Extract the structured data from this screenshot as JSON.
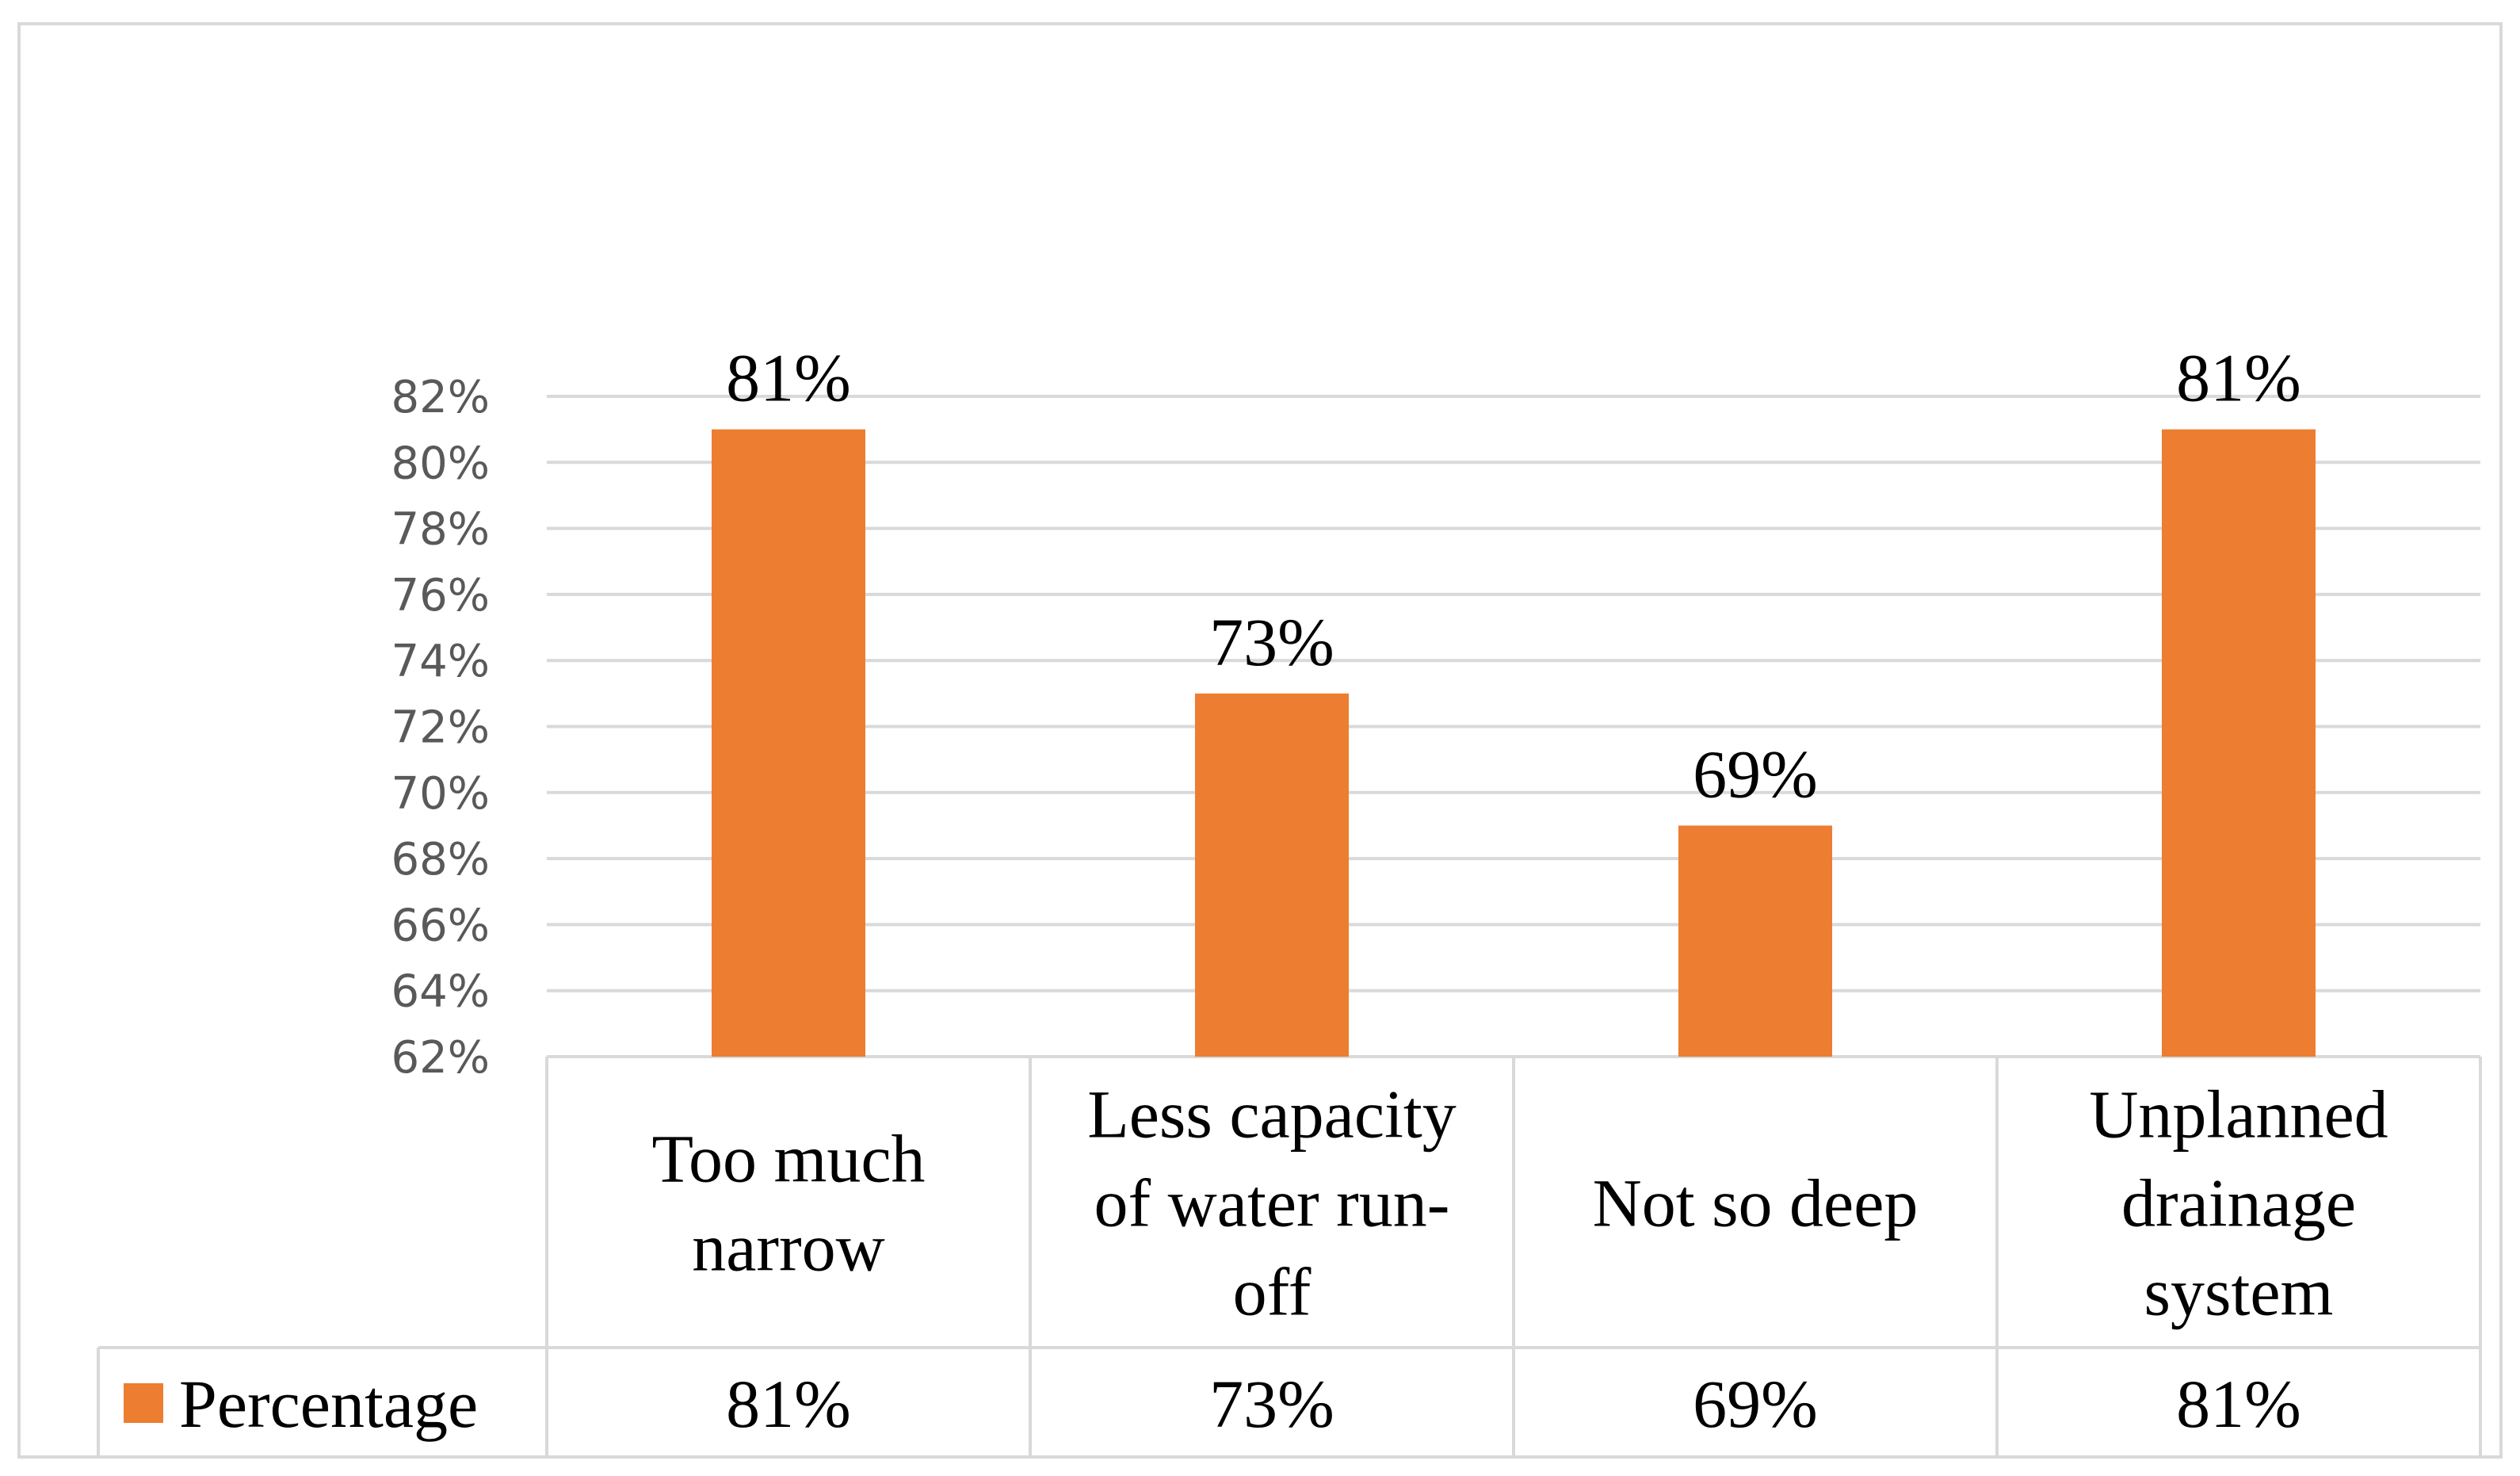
{
  "chart_data": {
    "type": "bar",
    "categories": [
      [
        "Too much",
        "narrow"
      ],
      [
        "Less capacity",
        "of water run-",
        "off"
      ],
      [
        "Not so deep"
      ],
      [
        "Unplanned",
        "drainage",
        "system"
      ]
    ],
    "series": [
      {
        "name": "Percentage",
        "values": [
          81,
          73,
          69,
          81
        ],
        "labels": [
          "81%",
          "73%",
          "69%",
          "81%"
        ]
      }
    ],
    "ylim": [
      62,
      82
    ],
    "ytick_step": 2,
    "ytick_labels": [
      "62%",
      "64%",
      "66%",
      "68%",
      "70%",
      "72%",
      "74%",
      "76%",
      "78%",
      "80%",
      "82%"
    ],
    "title": "",
    "xlabel": "",
    "ylabel": "",
    "grid": true,
    "data_table": true,
    "legend_position": "bottom-left in data table",
    "colors": {
      "bar": "#ED7D31",
      "grid": "#D9D9D9",
      "tick_text": "#595959",
      "border": "#D9D9D9"
    }
  }
}
